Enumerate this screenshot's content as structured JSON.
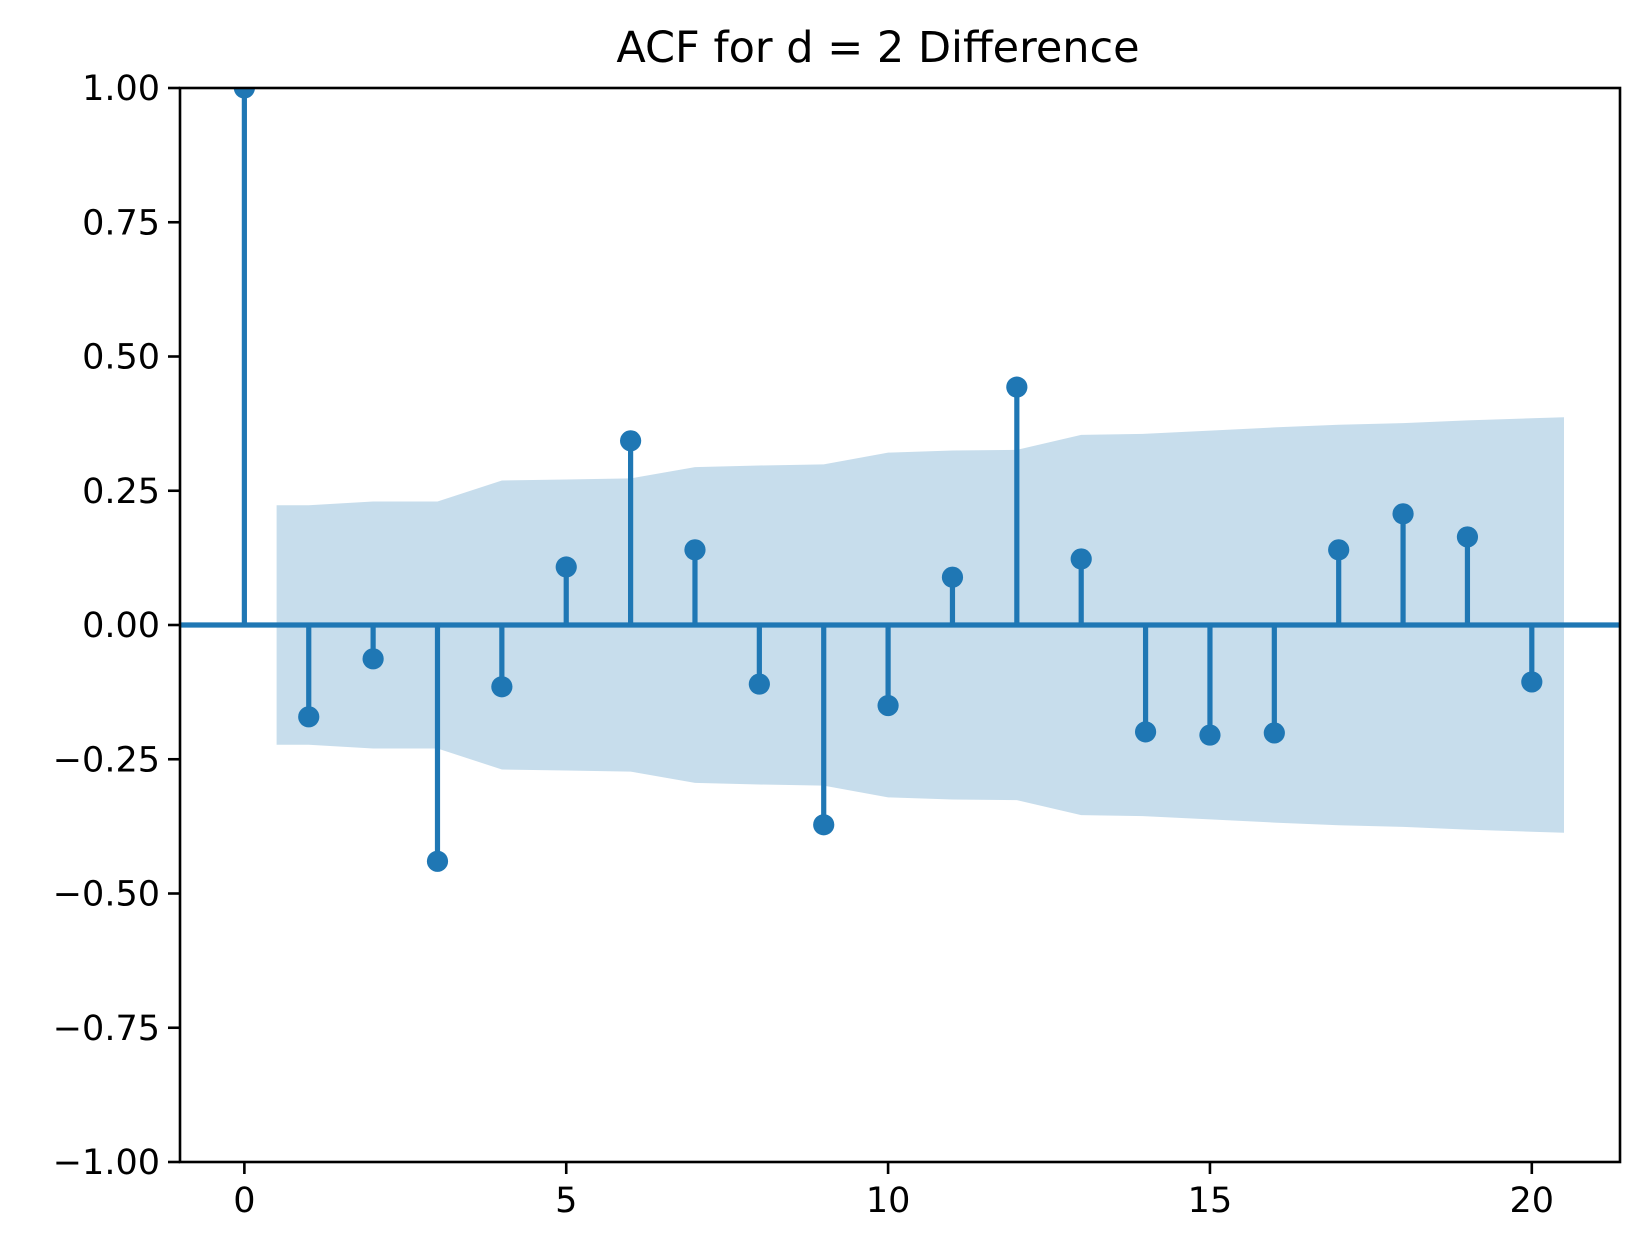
{
  "chart_data": {
    "type": "scatter",
    "variant": "stem-acf",
    "title": "ACF for d = 2 Difference",
    "xlabel": "",
    "ylabel": "",
    "x": [
      0,
      1,
      2,
      3,
      4,
      5,
      6,
      7,
      8,
      9,
      10,
      11,
      12,
      13,
      14,
      15,
      16,
      17,
      18,
      19,
      20
    ],
    "values": [
      1.0,
      -0.171,
      -0.063,
      -0.44,
      -0.115,
      0.108,
      0.343,
      0.14,
      -0.11,
      -0.372,
      -0.15,
      0.089,
      0.443,
      0.123,
      -0.199,
      -0.205,
      -0.201,
      0.14,
      0.207,
      0.164,
      -0.106
    ],
    "baseline": 0,
    "confidence_band": {
      "centered_at": 0,
      "x": [
        0.5,
        1,
        2,
        3,
        4,
        5,
        6,
        7,
        8,
        9,
        10,
        11,
        12,
        13,
        14,
        15,
        16,
        17,
        18,
        19,
        20,
        20.5
      ],
      "half_width": [
        0.223,
        0.223,
        0.23,
        0.23,
        0.269,
        0.271,
        0.273,
        0.294,
        0.297,
        0.299,
        0.321,
        0.325,
        0.326,
        0.354,
        0.356,
        0.362,
        0.368,
        0.373,
        0.376,
        0.381,
        0.385,
        0.387
      ]
    },
    "xlim": [
      -1,
      21.37
    ],
    "ylim": [
      -1,
      1
    ],
    "xticks": {
      "values": [
        0,
        5,
        10,
        15,
        20
      ],
      "labels": [
        "0",
        "5",
        "10",
        "15",
        "20"
      ]
    },
    "yticks": {
      "values": [
        1.0,
        0.75,
        0.5,
        0.25,
        0.0,
        -0.25,
        -0.5,
        -0.75,
        -1.0
      ],
      "labels": [
        "1.00",
        "0.75",
        "0.50",
        "0.25",
        "0.00",
        "−0.25",
        "−0.50",
        "−0.75",
        "−1.00"
      ]
    },
    "grid": false,
    "legend": "none",
    "colors": {
      "stem": "#1f77b4",
      "marker": "#1f77b4",
      "band": "rgba(31,119,180,0.25)",
      "spine": "#000000",
      "background": "#ffffff"
    }
  }
}
